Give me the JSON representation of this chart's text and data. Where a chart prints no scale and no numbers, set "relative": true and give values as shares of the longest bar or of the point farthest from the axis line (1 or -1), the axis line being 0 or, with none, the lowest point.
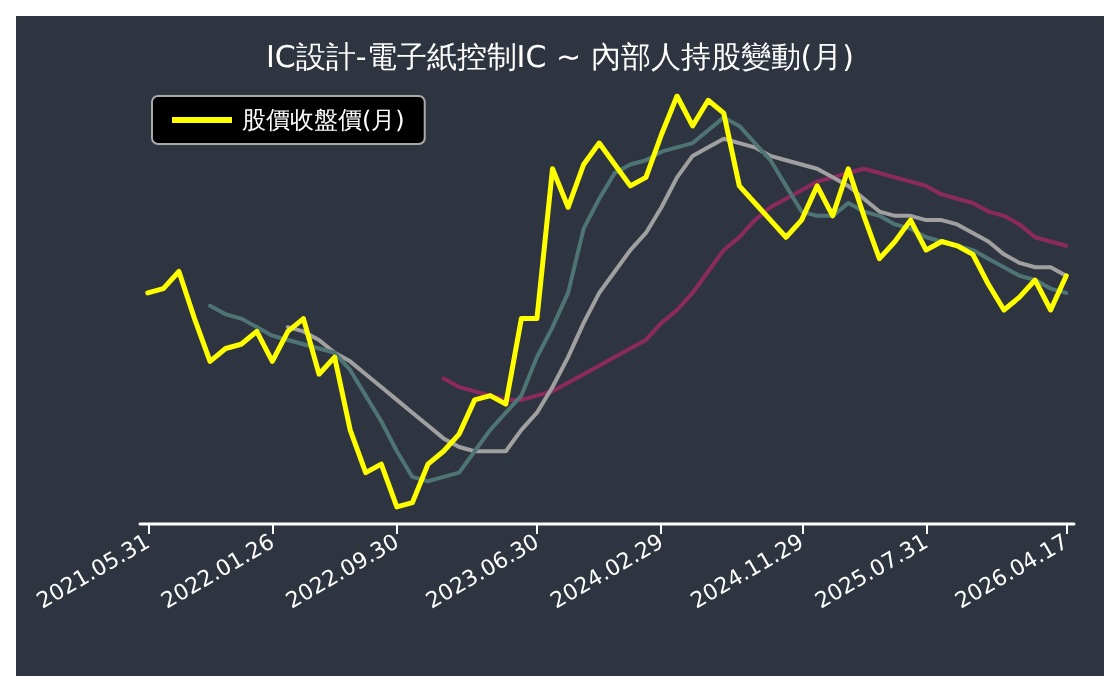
{
  "chart_data": {
    "type": "line",
    "title": "IC設計-電子紙控制IC ~ 內部人持股變動(月)",
    "categories": [
      "2021.05.31",
      null,
      null,
      null,
      null,
      null,
      null,
      null,
      "2022.01.26",
      null,
      null,
      null,
      null,
      null,
      null,
      null,
      "2022.09.30",
      null,
      null,
      null,
      null,
      null,
      null,
      null,
      null,
      "2023.06.30",
      null,
      null,
      null,
      null,
      null,
      null,
      null,
      "2024.02.29",
      null,
      null,
      null,
      null,
      null,
      null,
      null,
      null,
      "2024.11.29",
      null,
      null,
      null,
      null,
      null,
      null,
      null,
      "2025.07.31",
      null,
      null,
      null,
      null,
      null,
      null,
      null,
      null,
      "2026.04.17"
    ],
    "relative": true,
    "legend": "top left",
    "grid": false,
    "tick_labels": "x",
    "marker": "none",
    "line_style": "solid",
    "series": [
      {
        "color": "#8c2a5e",
        "values": [
          null,
          null,
          null,
          null,
          null,
          null,
          null,
          null,
          null,
          null,
          null,
          null,
          null,
          null,
          null,
          null,
          null,
          null,
          null,
          0.34,
          0.32,
          0.31,
          0.3,
          0.29,
          0.29,
          0.3,
          0.31,
          0.33,
          0.35,
          0.37,
          0.39,
          0.41,
          0.43,
          0.47,
          0.5,
          0.54,
          0.59,
          0.64,
          0.67,
          0.71,
          0.74,
          0.76,
          0.78,
          0.8,
          0.81,
          0.82,
          0.83,
          0.82,
          0.81,
          0.8,
          0.79,
          0.77,
          0.76,
          0.75,
          0.73,
          0.72,
          0.7,
          0.67,
          0.66,
          0.65
        ]
      },
      {
        "color": "#a0a0a0",
        "values": [
          null,
          null,
          null,
          null,
          null,
          null,
          null,
          null,
          null,
          0.46,
          0.45,
          0.43,
          0.4,
          0.38,
          0.35,
          0.32,
          0.29,
          0.26,
          0.23,
          0.2,
          0.18,
          0.17,
          0.17,
          0.17,
          0.22,
          0.26,
          0.32,
          0.39,
          0.47,
          0.54,
          0.59,
          0.64,
          0.68,
          0.74,
          0.81,
          0.86,
          0.88,
          0.9,
          0.89,
          0.88,
          0.86,
          0.85,
          0.84,
          0.83,
          0.81,
          0.79,
          0.76,
          0.73,
          0.72,
          0.72,
          0.71,
          0.71,
          0.7,
          0.68,
          0.66,
          0.63,
          0.61,
          0.6,
          0.6,
          0.58
        ]
      },
      {
        "color": "#4e7474",
        "values": [
          null,
          null,
          null,
          null,
          0.51,
          0.49,
          0.48,
          0.46,
          0.44,
          0.43,
          0.42,
          0.41,
          0.4,
          0.36,
          0.3,
          0.24,
          0.17,
          0.11,
          0.1,
          0.11,
          0.12,
          0.17,
          0.22,
          0.26,
          0.3,
          0.39,
          0.46,
          0.54,
          0.69,
          0.76,
          0.82,
          0.84,
          0.85,
          0.87,
          0.88,
          0.89,
          0.92,
          0.95,
          0.93,
          0.89,
          0.85,
          0.79,
          0.73,
          0.72,
          0.72,
          0.75,
          0.73,
          0.72,
          0.7,
          0.69,
          0.67,
          0.66,
          0.65,
          0.64,
          0.62,
          0.6,
          0.58,
          0.57,
          0.55,
          0.54
        ]
      },
      {
        "name": "股價收盤價(月)",
        "color": "#ffff00",
        "values": [
          0.54,
          0.55,
          0.59,
          0.48,
          0.38,
          0.41,
          0.42,
          0.45,
          0.38,
          0.45,
          0.48,
          0.35,
          0.39,
          0.22,
          0.12,
          0.14,
          0.04,
          0.05,
          0.14,
          0.17,
          0.21,
          0.29,
          0.3,
          0.28,
          0.48,
          0.48,
          0.83,
          0.74,
          0.84,
          0.89,
          0.84,
          0.79,
          0.81,
          0.91,
          1,
          0.93,
          0.99,
          0.96,
          0.79,
          0.75,
          0.71,
          0.67,
          0.71,
          0.79,
          0.72,
          0.83,
          0.72,
          0.62,
          0.66,
          0.71,
          0.64,
          0.66,
          0.65,
          0.63,
          0.56,
          0.5,
          0.53,
          0.57,
          0.5,
          0.58
        ]
      }
    ]
  }
}
